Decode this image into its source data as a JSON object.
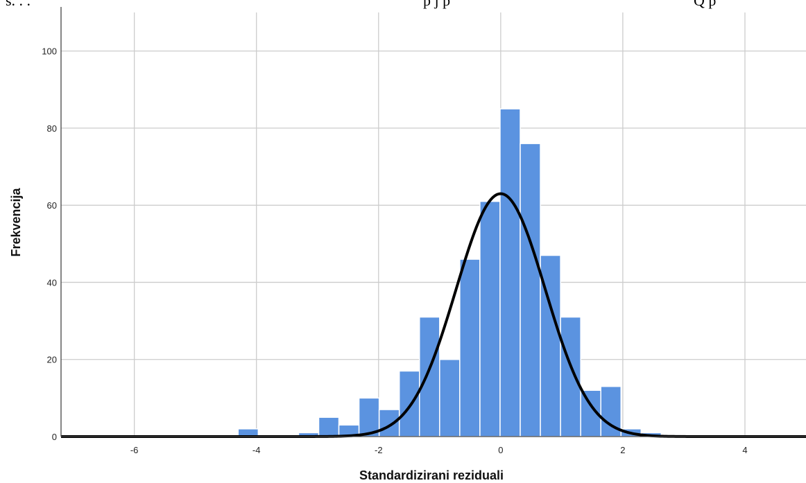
{
  "header_fragments": [
    {
      "text": "s.      .         .",
      "x_anchor": "left"
    },
    {
      "text": "p             j  p",
      "x_anchor": "mid"
    },
    {
      "text": "Q          p",
      "x_anchor": "right"
    }
  ],
  "chart_data": {
    "type": "bar",
    "subtype": "histogram",
    "xlabel": "Standardizirani reziduali",
    "ylabel": "Frekvencija",
    "xlim": [
      -7.2,
      5.0
    ],
    "ylim": [
      0,
      110
    ],
    "x_ticks": [
      -6,
      -4,
      -2,
      0,
      2,
      4
    ],
    "y_ticks": [
      0,
      20,
      40,
      60,
      80,
      100
    ],
    "grid": true,
    "bar_color": "#5b93e0",
    "bar_edge_color": "#ffffff",
    "curve_color": "#000000",
    "bin_width": 0.33,
    "bins": [
      {
        "x0": -4.3,
        "x1": -3.97,
        "value": 2
      },
      {
        "x0": -3.31,
        "x1": -2.98,
        "value": 1
      },
      {
        "x0": -2.98,
        "x1": -2.65,
        "value": 5
      },
      {
        "x0": -2.65,
        "x1": -2.32,
        "value": 3
      },
      {
        "x0": -2.32,
        "x1": -1.99,
        "value": 10
      },
      {
        "x0": -1.99,
        "x1": -1.66,
        "value": 7
      },
      {
        "x0": -1.66,
        "x1": -1.33,
        "value": 17
      },
      {
        "x0": -1.33,
        "x1": -1.0,
        "value": 31
      },
      {
        "x0": -1.0,
        "x1": -0.67,
        "value": 20
      },
      {
        "x0": -0.67,
        "x1": -0.34,
        "value": 46
      },
      {
        "x0": -0.34,
        "x1": -0.01,
        "value": 61
      },
      {
        "x0": -0.01,
        "x1": 0.32,
        "value": 85
      },
      {
        "x0": 0.32,
        "x1": 0.65,
        "value": 76
      },
      {
        "x0": 0.65,
        "x1": 0.98,
        "value": 47
      },
      {
        "x0": 0.98,
        "x1": 1.31,
        "value": 31
      },
      {
        "x0": 1.31,
        "x1": 1.64,
        "value": 12
      },
      {
        "x0": 1.64,
        "x1": 1.97,
        "value": 13
      },
      {
        "x0": 1.97,
        "x1": 2.3,
        "value": 2
      },
      {
        "x0": 2.3,
        "x1": 2.63,
        "value": 1
      },
      {
        "x0": 2.63,
        "x1": 2.96,
        "value": 0.5
      }
    ],
    "normal_curve": {
      "mean": 0.0,
      "sd": 0.73,
      "peak": 63
    }
  }
}
